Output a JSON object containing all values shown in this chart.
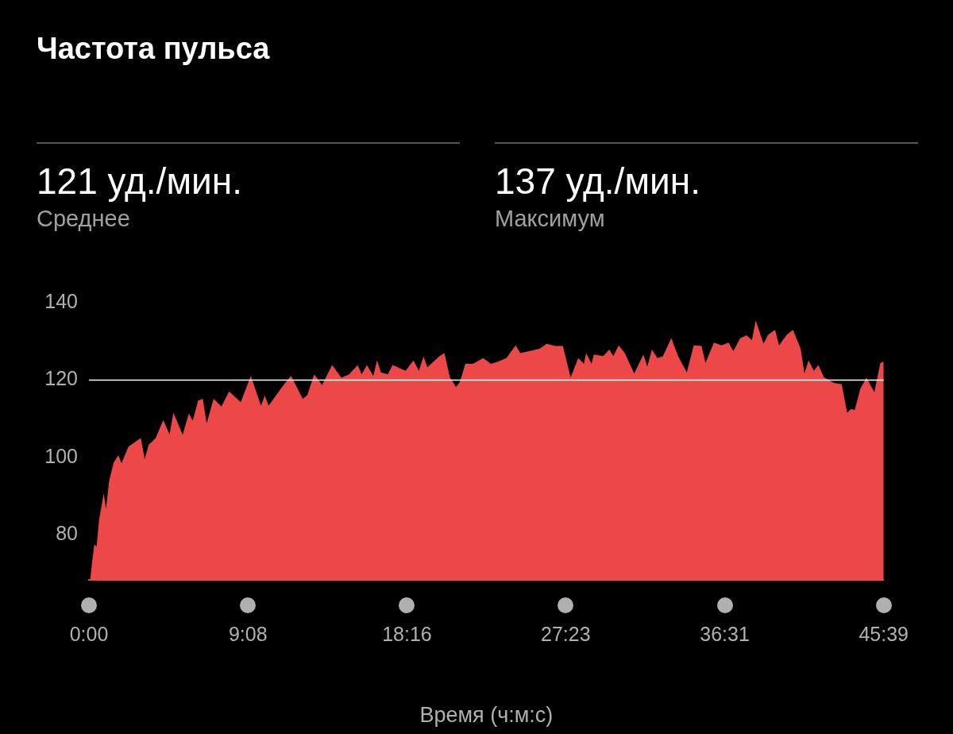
{
  "chart_data": {
    "type": "area",
    "title": "Частота пульса",
    "annotations": [
      "121 уд./мин.",
      "Среднее",
      "137 уд./мин.",
      "Максимум"
    ],
    "xlabel": "Время (ч:м:с)",
    "x": [
      0.08,
      0.18,
      0.31,
      0.44,
      0.58,
      0.85,
      0.98,
      1.16,
      1.42,
      1.69,
      1.87,
      2.27,
      2.71,
      2.98,
      3.2,
      3.43,
      3.83,
      4.27,
      4.63,
      4.85,
      5.38,
      5.74,
      5.96,
      6.27,
      6.54,
      6.76,
      7.16,
      7.61,
      8.05,
      8.72,
      9.3,
      9.88,
      10.1,
      10.32,
      11.21,
      11.61,
      12.28,
      12.54,
      12.94,
      13.39,
      13.97,
      14.5,
      14.95,
      15.44,
      15.66,
      15.97,
      16.33,
      16.55,
      16.77,
      17.17,
      17.44,
      18.19,
      18.64,
      18.95,
      19.22,
      19.44,
      20.11,
      20.42,
      20.73,
      21.09,
      21.31,
      21.62,
      22.06,
      22.64,
      23.09,
      23.53,
      23.98,
      24.51,
      24.78,
      25.89,
      26.29,
      26.78,
      27.22,
      27.67,
      28.11,
      28.43,
      28.56,
      28.87,
      29.0,
      29.54,
      29.89,
      30.12,
      30.43,
      30.78,
      31.32,
      31.85,
      32.07,
      32.34,
      32.65,
      32.96,
      33.45,
      33.85,
      34.34,
      34.74,
      35.19,
      35.41,
      35.9,
      36.34,
      36.74,
      37.01,
      37.41,
      37.77,
      38.08,
      38.3,
      38.75,
      39.01,
      39.41,
      39.64,
      40.08,
      40.44,
      40.88,
      41.1,
      41.33,
      41.64,
      41.9,
      42.22,
      42.79,
      43.24,
      43.55,
      43.77,
      43.99,
      44.31,
      44.66,
      45.11,
      45.46,
      45.65
    ],
    "series": [
      {
        "color": "#ec4848",
        "values": [
          68.8,
          73,
          77.6,
          77,
          83.9,
          90.8,
          86.8,
          94,
          98.7,
          100.6,
          98.5,
          102.8,
          104.2,
          105.1,
          99.6,
          103.3,
          105,
          109.7,
          106,
          111.6,
          105.9,
          111.4,
          109.5,
          114.7,
          115.2,
          108.8,
          115.2,
          113.2,
          117.1,
          114.3,
          121.1,
          113.4,
          116,
          113.4,
          118.9,
          121.1,
          115.2,
          116.1,
          121.5,
          118.7,
          123.9,
          120.6,
          121.5,
          123.9,
          121.5,
          123.9,
          121.1,
          125.1,
          122,
          121.5,
          123.9,
          122.4,
          125.1,
          122.4,
          126.1,
          123.3,
          126.1,
          127,
          120.7,
          118.2,
          119.6,
          124.2,
          124.2,
          125.7,
          124.2,
          124.8,
          125.7,
          129,
          127,
          128.1,
          129.4,
          128.8,
          128.8,
          120.7,
          125.7,
          124.2,
          127,
          124.2,
          126.6,
          126.2,
          127.9,
          126.2,
          129,
          127,
          121.7,
          126.6,
          123.5,
          127.9,
          125.7,
          126.1,
          130.8,
          126.1,
          122,
          129,
          128.8,
          124.4,
          129.7,
          129,
          129.7,
          127.5,
          130.8,
          131.6,
          130.3,
          135.4,
          129.4,
          131.7,
          133,
          129,
          131.7,
          133,
          128.1,
          121.7,
          125.1,
          122.4,
          123.9,
          120.7,
          119.3,
          118.9,
          111.6,
          112.5,
          112.3,
          117.8,
          120.6,
          116.9,
          124.4,
          124.8
        ]
      }
    ],
    "xlim": [
      0,
      45.65
    ],
    "xticks": [
      {
        "value": 0,
        "label": "0:00"
      },
      {
        "value": 9.133,
        "label": "9:08"
      },
      {
        "value": 18.267,
        "label": "18:16"
      },
      {
        "value": 27.383,
        "label": "27:23"
      },
      {
        "value": 36.517,
        "label": "36:31"
      },
      {
        "value": 45.65,
        "label": "45:39"
      }
    ],
    "ylim": [
      68.5,
      140
    ],
    "yticks": [
      80,
      100,
      120,
      140
    ],
    "ref_lines": [
      {
        "axis": "y",
        "value": 120,
        "color": "#ffffff"
      }
    ],
    "grid": false,
    "legend": false,
    "marker": "none"
  }
}
